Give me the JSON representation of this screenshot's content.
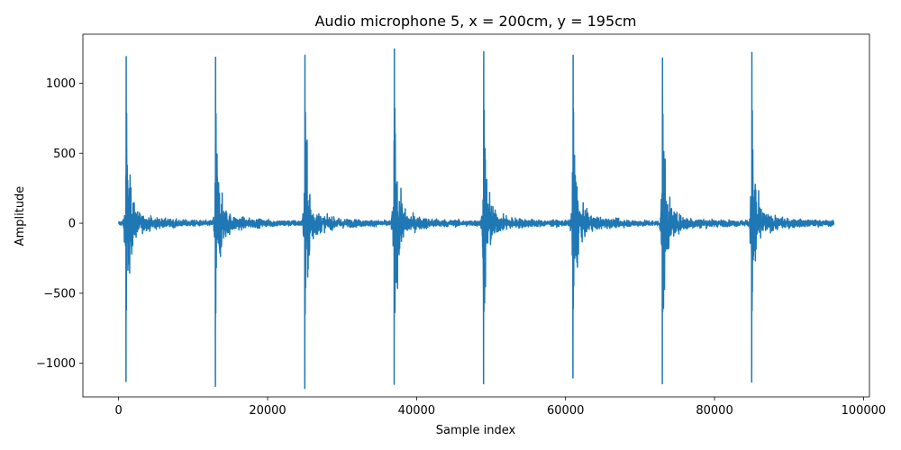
{
  "chart_data": {
    "type": "line",
    "title": "Audio microphone 5, x = 200cm, y = 195cm",
    "xlabel": "Sample index",
    "ylabel": "Amplitude",
    "xlim": [
      -4800,
      100800
    ],
    "ylim": [
      -1240,
      1350
    ],
    "grid": false,
    "xticks": [
      0,
      20000,
      40000,
      60000,
      80000,
      100000
    ],
    "xtick_labels": [
      "0",
      "20000",
      "40000",
      "60000",
      "80000",
      "100000"
    ],
    "yticks": [
      -1000,
      -500,
      0,
      500,
      1000
    ],
    "ytick_labels": [
      "−1000",
      "−500",
      "0",
      "500",
      "1000"
    ],
    "series": [
      {
        "name": "",
        "color": "#1f77b4",
        "x_range": [
          0,
          96000
        ],
        "baseline_noise": 15,
        "events": [
          {
            "x": 1000,
            "peak": 1190,
            "trough": -1130
          },
          {
            "x": 13000,
            "peak": 1185,
            "trough": -1165
          },
          {
            "x": 25000,
            "peak": 1200,
            "trough": -1180
          },
          {
            "x": 37000,
            "peak": 1245,
            "trough": -1150
          },
          {
            "x": 49000,
            "peak": 1225,
            "trough": -1145
          },
          {
            "x": 61000,
            "peak": 1200,
            "trough": -1105
          },
          {
            "x": 73000,
            "peak": 1180,
            "trough": -1145
          },
          {
            "x": 85000,
            "peak": 1220,
            "trough": -1135
          }
        ]
      }
    ]
  }
}
